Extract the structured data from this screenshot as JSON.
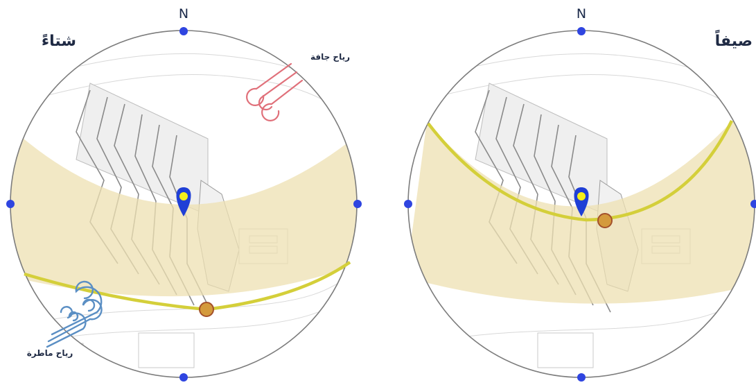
{
  "panels": {
    "winter": {
      "north_label": "N",
      "season_label": "شتاءً",
      "wind_dry_label": "رياح جافة",
      "wind_rain_label": "رياح ماطرة"
    },
    "summer": {
      "north_label": "N",
      "season_label": "صيفاً"
    }
  },
  "colors": {
    "sun_band_fill": "#ede0b2",
    "sun_path": "#d4cf3a",
    "sun_position": "#d49a3c",
    "location_pin": "#1f3fd6",
    "location_pin_center": "#f5ef1a",
    "compass_dot": "#2f45e0",
    "dry_wind": "#e0707a",
    "rain_wind": "#5b8fc4",
    "circle_outline": "#7c7c7c"
  },
  "icons": {
    "location": "map-pin-icon",
    "dry_wind": "wind-icon",
    "rain_wind": "wind-swirl-icon"
  }
}
